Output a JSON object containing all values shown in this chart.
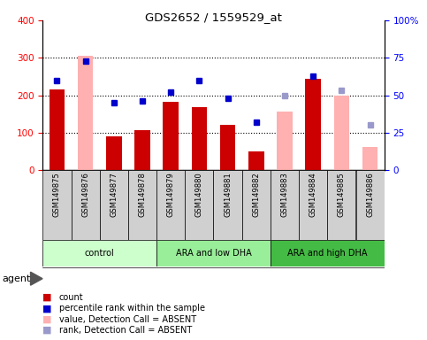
{
  "title": "GDS2652 / 1559529_at",
  "samples": [
    "GSM149875",
    "GSM149876",
    "GSM149877",
    "GSM149878",
    "GSM149879",
    "GSM149880",
    "GSM149881",
    "GSM149882",
    "GSM149883",
    "GSM149884",
    "GSM149885",
    "GSM149886"
  ],
  "groups": [
    {
      "label": "control",
      "indices": [
        0,
        1,
        2,
        3
      ],
      "color": "#ccffcc"
    },
    {
      "label": "ARA and low DHA",
      "indices": [
        4,
        5,
        6,
        7
      ],
      "color": "#99ee99"
    },
    {
      "label": "ARA and high DHA",
      "indices": [
        8,
        9,
        10,
        11
      ],
      "color": "#44bb44"
    }
  ],
  "count_values": [
    215,
    null,
    90,
    107,
    183,
    168,
    120,
    50,
    null,
    243,
    null,
    null
  ],
  "count_absent_values": [
    null,
    305,
    null,
    null,
    null,
    null,
    null,
    null,
    157,
    null,
    200,
    62
  ],
  "percentile_values": [
    60,
    73,
    45,
    46,
    52,
    60,
    48,
    32,
    null,
    63,
    null,
    null
  ],
  "percentile_absent_values": [
    null,
    null,
    null,
    null,
    null,
    null,
    null,
    null,
    50,
    null,
    53,
    30
  ],
  "ylim_left": [
    0,
    400
  ],
  "ylim_right": [
    0,
    100
  ],
  "yticks_left": [
    0,
    100,
    200,
    300,
    400
  ],
  "yticks_right": [
    0,
    25,
    50,
    75,
    100
  ],
  "ytick_labels_right": [
    "0",
    "25",
    "50",
    "75",
    "100%"
  ],
  "hlines": [
    100,
    200,
    300
  ],
  "bar_color": "#cc0000",
  "bar_absent_color": "#ffb0b0",
  "dot_color": "#0000cc",
  "dot_absent_color": "#9999cc",
  "bg_color": "#ffffff",
  "legend_items": [
    {
      "label": "count",
      "color": "#cc0000"
    },
    {
      "label": "percentile rank within the sample",
      "color": "#0000cc"
    },
    {
      "label": "value, Detection Call = ABSENT",
      "color": "#ffb0b0"
    },
    {
      "label": "rank, Detection Call = ABSENT",
      "color": "#9999cc"
    }
  ]
}
